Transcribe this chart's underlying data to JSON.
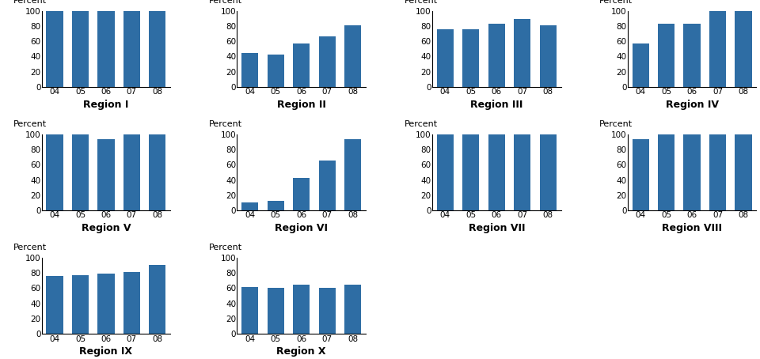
{
  "regions": [
    {
      "name": "Region I",
      "values": [
        100,
        100,
        100,
        100,
        100
      ]
    },
    {
      "name": "Region II",
      "values": [
        45,
        43,
        57,
        66,
        81
      ]
    },
    {
      "name": "Region III",
      "values": [
        76,
        76,
        83,
        89,
        81
      ]
    },
    {
      "name": "Region IV",
      "values": [
        57,
        83,
        83,
        100,
        100
      ]
    },
    {
      "name": "Region V",
      "values": [
        100,
        100,
        93,
        100,
        100
      ]
    },
    {
      "name": "Region VI",
      "values": [
        11,
        13,
        43,
        66,
        93
      ]
    },
    {
      "name": "Region VII",
      "values": [
        100,
        100,
        100,
        100,
        100
      ]
    },
    {
      "name": "Region VIII",
      "values": [
        93,
        100,
        100,
        100,
        100
      ]
    },
    {
      "name": "Region IX",
      "values": [
        76,
        77,
        79,
        81,
        90
      ]
    },
    {
      "name": "Region X",
      "values": [
        61,
        60,
        65,
        60,
        65
      ]
    }
  ],
  "years": [
    "04",
    "05",
    "06",
    "07",
    "08"
  ],
  "bar_color": "#2E6DA4",
  "ylim": [
    0,
    100
  ],
  "yticks": [
    0,
    20,
    40,
    60,
    80,
    100
  ],
  "ylabel": "Percent",
  "ylabel_fontsize": 8,
  "title_fontsize": 9,
  "tick_fontsize": 7.5
}
